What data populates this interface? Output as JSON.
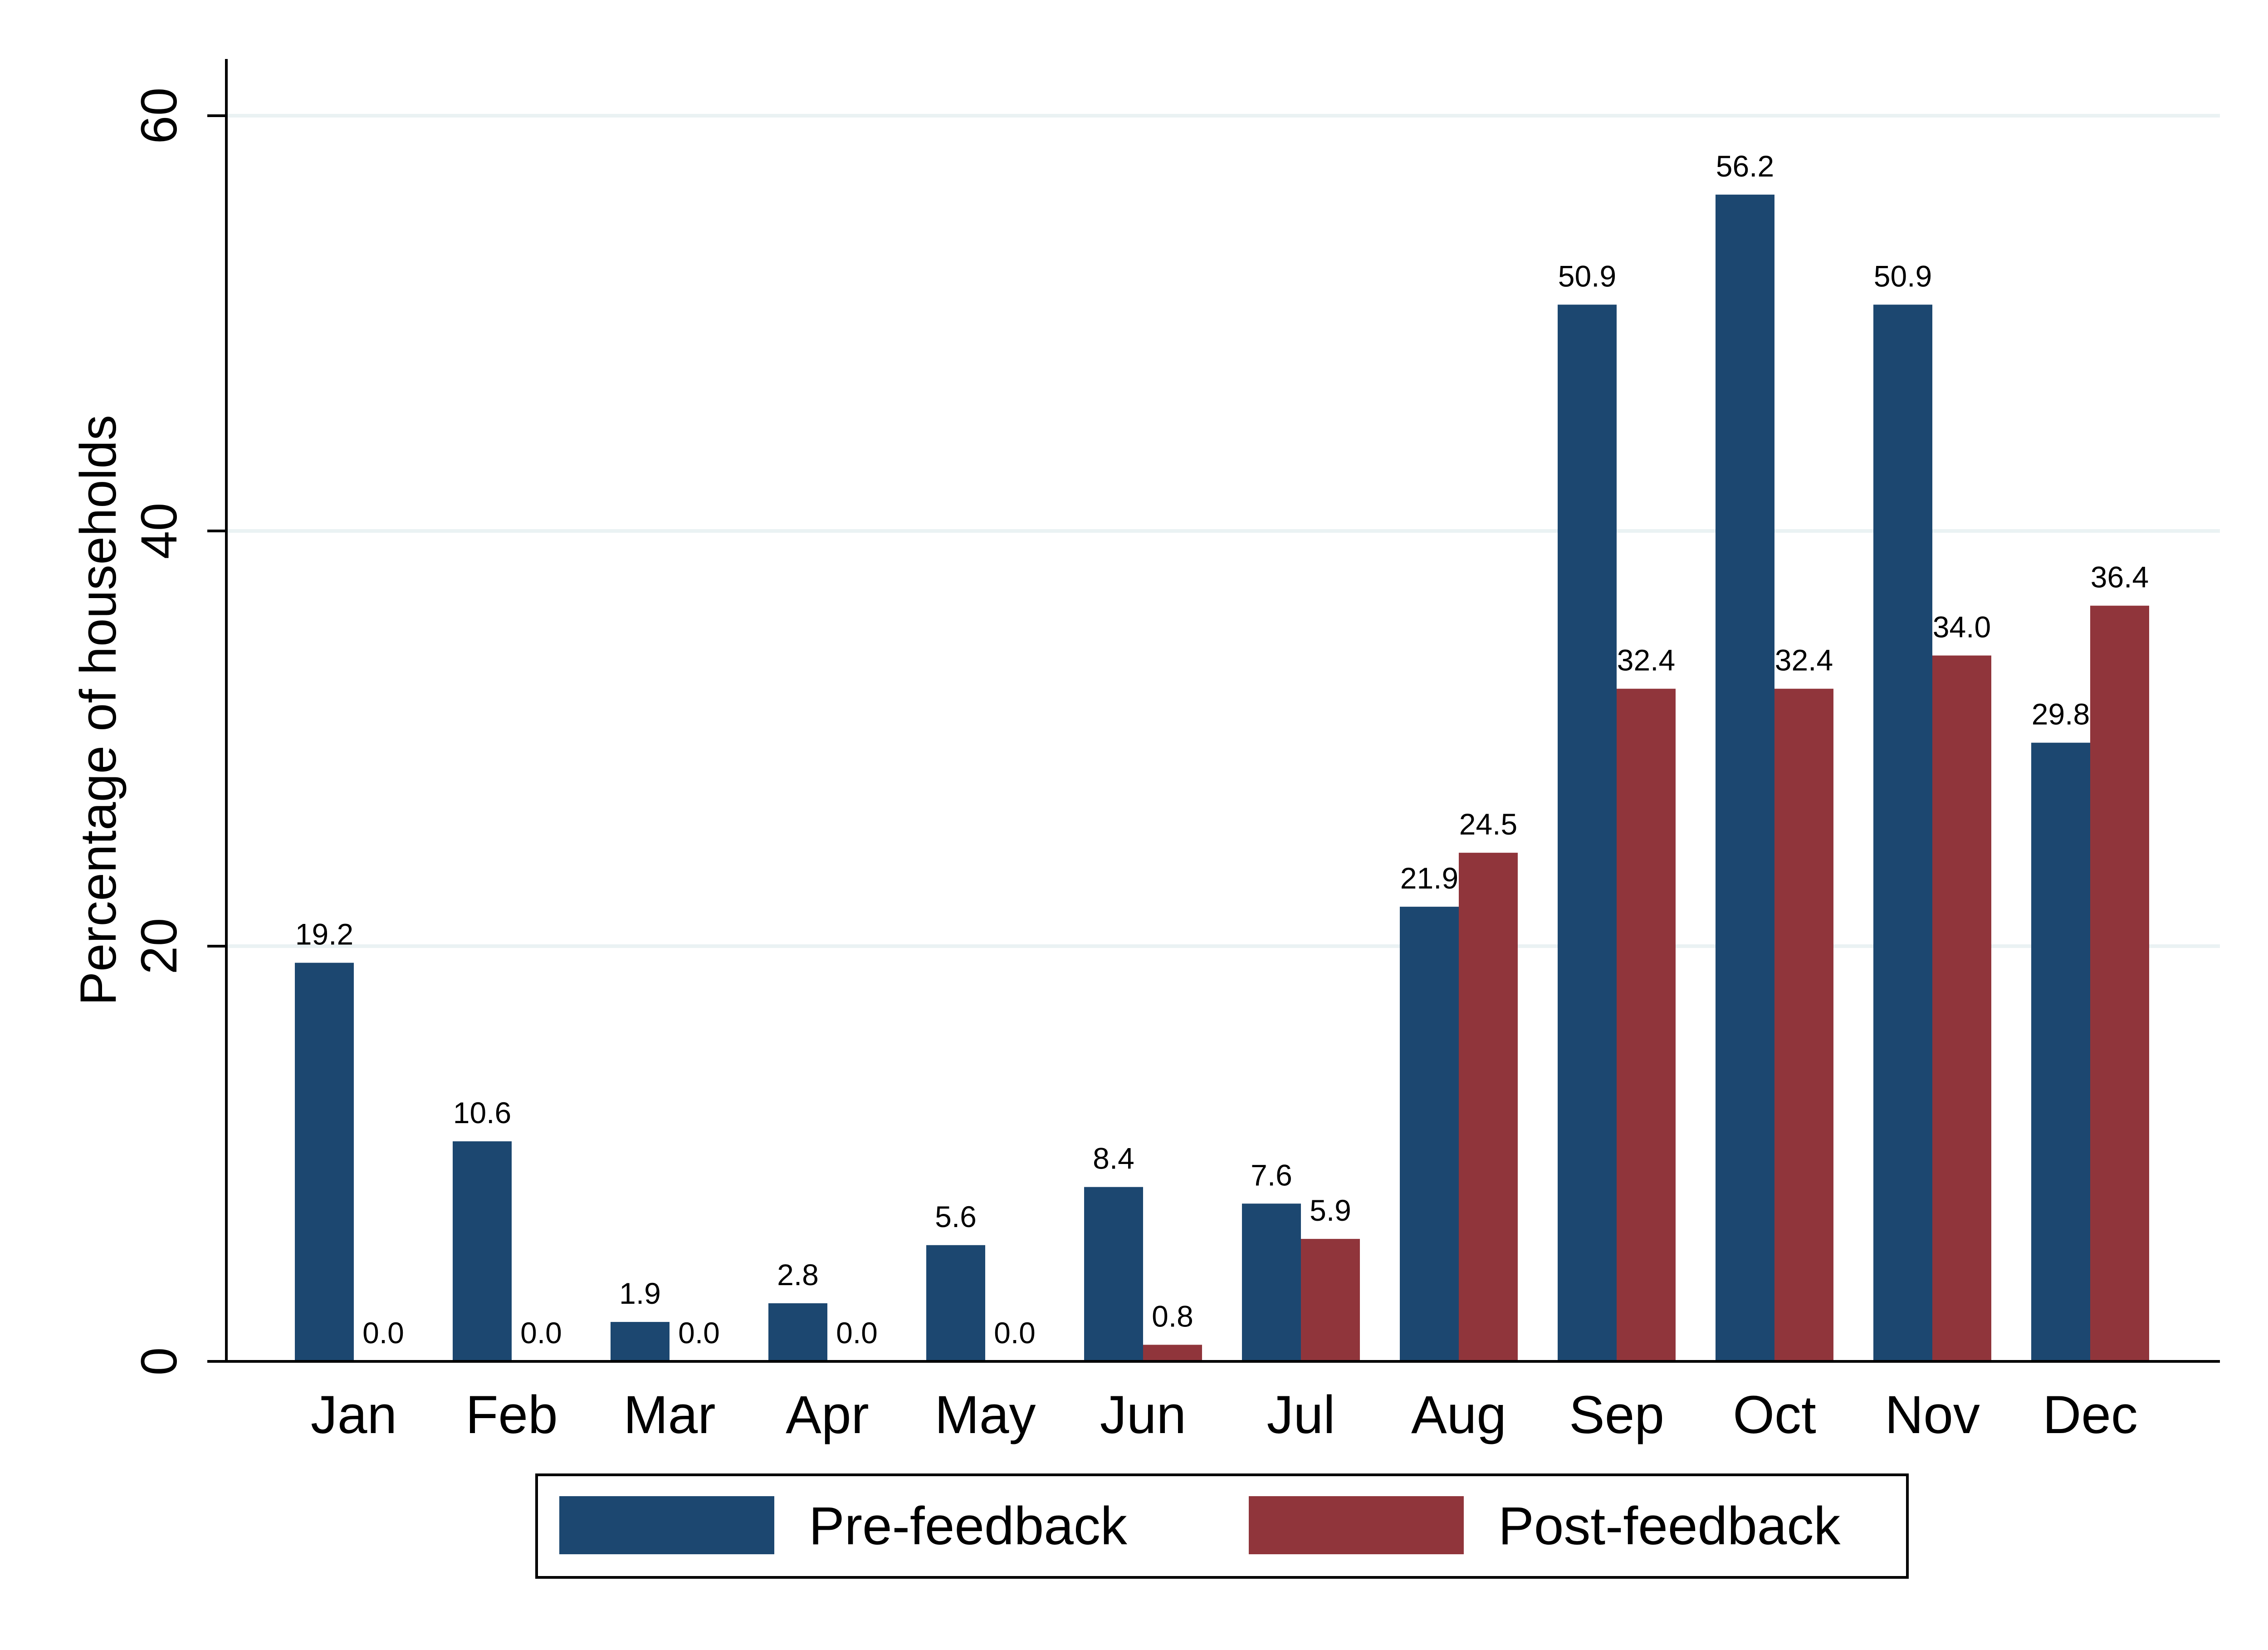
{
  "chart_data": {
    "type": "bar",
    "title": "",
    "xlabel": "",
    "ylabel": "Percentage of households",
    "ylim": [
      0,
      63
    ],
    "yticks": [
      0,
      20,
      40,
      60
    ],
    "grid": true,
    "legend_position": "bottom",
    "categories": [
      "Jan",
      "Feb",
      "Mar",
      "Apr",
      "May",
      "Jun",
      "Jul",
      "Aug",
      "Sep",
      "Oct",
      "Nov",
      "Dec"
    ],
    "series": [
      {
        "name": "Pre-feedback",
        "color": "#1c4770",
        "values": [
          19.2,
          10.6,
          1.9,
          2.8,
          5.6,
          8.4,
          7.6,
          21.9,
          50.9,
          56.2,
          50.9,
          29.8
        ],
        "labels": [
          "19.2",
          "10.6",
          "1.9",
          "2.8",
          "5.6",
          "8.4",
          "7.6",
          "21.9",
          "50.9",
          "56.2",
          "50.9",
          "29.8"
        ]
      },
      {
        "name": "Post-feedback",
        "color": "#90353b",
        "values": [
          0.0,
          0.0,
          0.0,
          0.0,
          0.0,
          0.8,
          5.9,
          24.5,
          32.4,
          32.4,
          34.0,
          36.4
        ],
        "labels": [
          "0.0",
          "0.0",
          "0.0",
          "0.0",
          "0.0",
          "0.8",
          "5.9",
          "24.5",
          "32.4",
          "32.4",
          "34.0",
          "36.4"
        ]
      }
    ]
  }
}
